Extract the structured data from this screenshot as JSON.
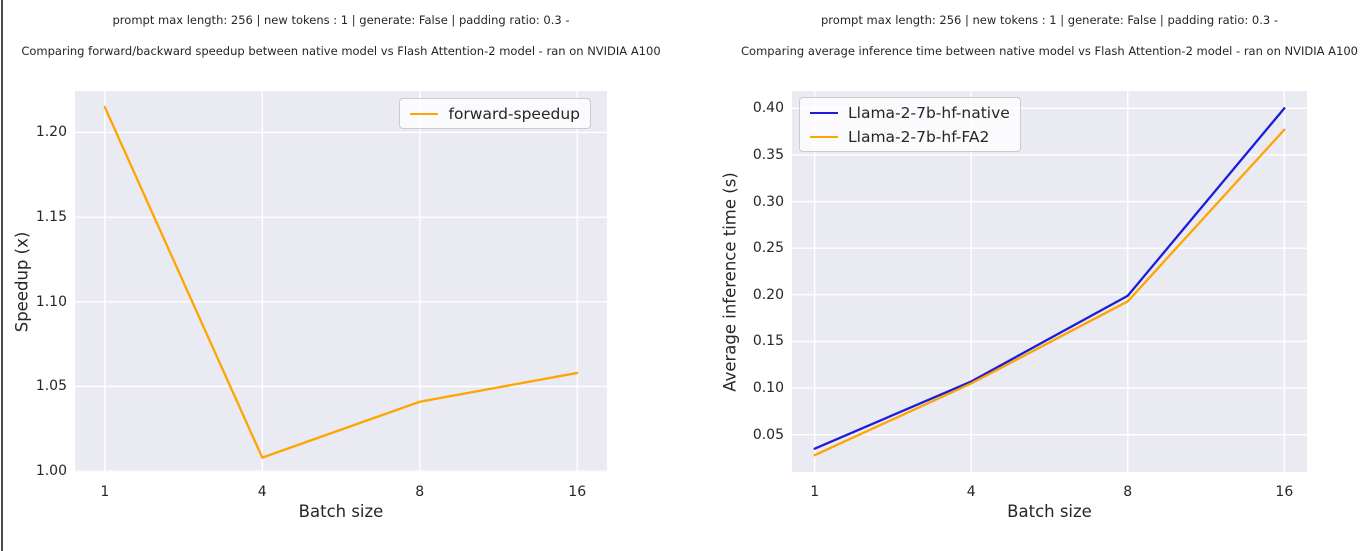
{
  "window": {
    "left_border_color": "#4a4a4a"
  },
  "figure": {
    "background": "#ffffff",
    "plot_background": "#eaeaf2",
    "grid_color": "#ffffff",
    "text_color": "#262626"
  },
  "chart_data": [
    {
      "type": "line",
      "suptitle": "prompt max length: 256 | new tokens : 1 | generate: False | padding ratio: 0.3 -",
      "title": "Comparing forward/backward speedup between native model vs Flash Attention-2 model - ran on NVIDIA A100",
      "xlabel": "Batch size",
      "ylabel": "Speedup (x)",
      "categories": [
        "1",
        "4",
        "8",
        "16"
      ],
      "series": [
        {
          "name": "forward-speedup",
          "color": "#ffa500",
          "values": [
            1.215,
            1.008,
            1.041,
            1.058
          ]
        }
      ],
      "yticks": [
        1.0,
        1.05,
        1.1,
        1.15,
        1.2
      ],
      "ytick_labels": [
        "1.00",
        "1.05",
        "1.10",
        "1.15",
        "1.20"
      ],
      "ylim": [
        0.9995,
        1.2245
      ],
      "grid": true,
      "legend_position": "upper-right"
    },
    {
      "type": "line",
      "suptitle": "prompt max length: 256 | new tokens : 1 | generate: False | padding ratio: 0.3 -",
      "title": "Comparing average inference time between native model vs Flash Attention-2 model - ran on NVIDIA A100",
      "xlabel": "Batch size",
      "ylabel": "Average inference time (s)",
      "categories": [
        "1",
        "4",
        "8",
        "16"
      ],
      "series": [
        {
          "name": "Llama-2-7b-hf-native",
          "color": "#1c1cdb",
          "values": [
            0.035,
            0.107,
            0.199,
            0.4
          ]
        },
        {
          "name": "Llama-2-7b-hf-FA2",
          "color": "#ffa500",
          "values": [
            0.028,
            0.105,
            0.193,
            0.377
          ]
        }
      ],
      "yticks": [
        0.05,
        0.1,
        0.15,
        0.2,
        0.25,
        0.3,
        0.35,
        0.4
      ],
      "ytick_labels": [
        "0.05",
        "0.10",
        "0.15",
        "0.20",
        "0.25",
        "0.30",
        "0.35",
        "0.40"
      ],
      "ylim": [
        0.01,
        0.4185
      ],
      "grid": true,
      "legend_position": "upper-left"
    }
  ]
}
